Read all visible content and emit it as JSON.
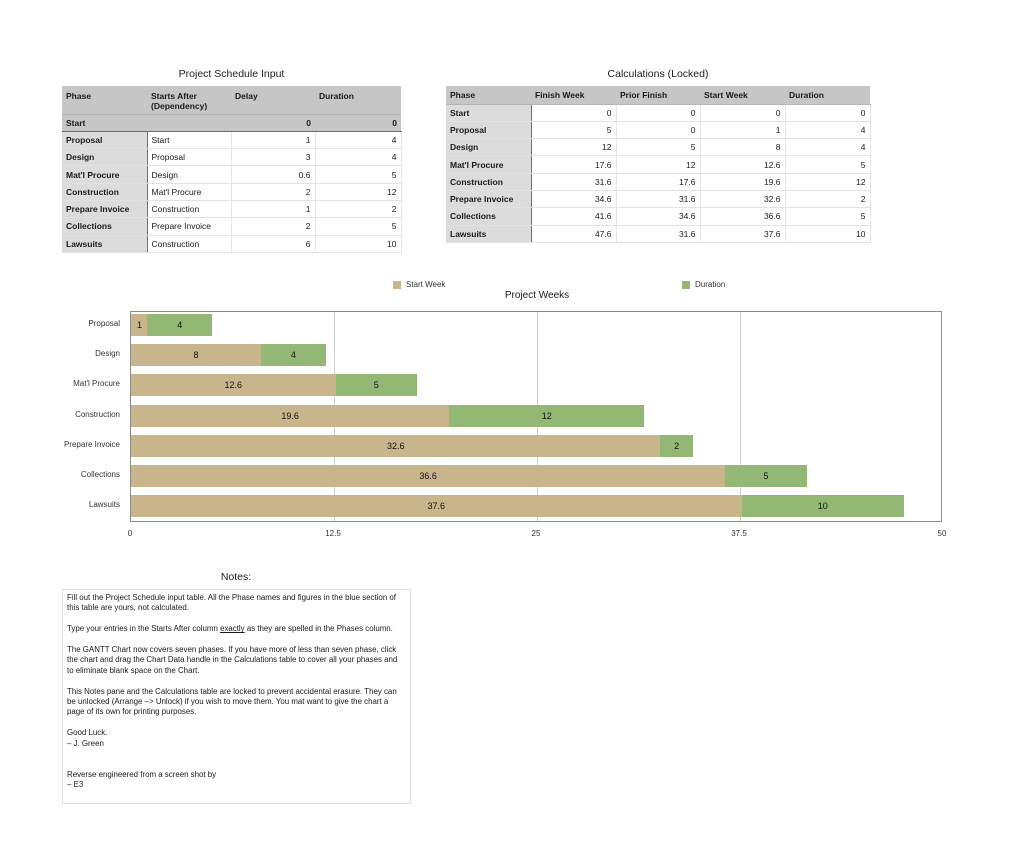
{
  "input_section": {
    "title": "Project Schedule Input",
    "headers": [
      "Phase",
      "Starts After (Dependency)",
      "Delay",
      "Duration"
    ],
    "header_line1": "Starts After",
    "header_line2": "(Dependency)",
    "start_row": {
      "phase": "Start",
      "starts_after": "",
      "delay": "0",
      "duration": "0"
    },
    "rows": [
      {
        "phase": "Proposal",
        "starts_after": "Start",
        "delay": "1",
        "duration": "4"
      },
      {
        "phase": "Design",
        "starts_after": "Proposal",
        "delay": "3",
        "duration": "4"
      },
      {
        "phase": "Mat'l Procure",
        "starts_after": "Design",
        "delay": "0.6",
        "duration": "5"
      },
      {
        "phase": "Construction",
        "starts_after": "Mat'l Procure",
        "delay": "2",
        "duration": "12"
      },
      {
        "phase": "Prepare Invoice",
        "starts_after": "Construction",
        "delay": "1",
        "duration": "2"
      },
      {
        "phase": "Collections",
        "starts_after": "Prepare Invoice",
        "delay": "2",
        "duration": "5"
      },
      {
        "phase": "Lawsuits",
        "starts_after": "Construction",
        "delay": "6",
        "duration": "10"
      }
    ]
  },
  "calc_section": {
    "title": "Calculations (Locked)",
    "headers": [
      "Phase",
      "Finish Week",
      "Prior Finish",
      "Start Week",
      "Duration"
    ],
    "rows": [
      {
        "phase": "Start",
        "finish_week": "0",
        "prior_finish": "0",
        "start_week": "0",
        "duration": "0"
      },
      {
        "phase": "Proposal",
        "finish_week": "5",
        "prior_finish": "0",
        "start_week": "1",
        "duration": "4"
      },
      {
        "phase": "Design",
        "finish_week": "12",
        "prior_finish": "5",
        "start_week": "8",
        "duration": "4"
      },
      {
        "phase": "Mat'l Procure",
        "finish_week": "17.6",
        "prior_finish": "12",
        "start_week": "12.6",
        "duration": "5"
      },
      {
        "phase": "Construction",
        "finish_week": "31.6",
        "prior_finish": "17.6",
        "start_week": "19.6",
        "duration": "12"
      },
      {
        "phase": "Prepare Invoice",
        "finish_week": "34.6",
        "prior_finish": "31.6",
        "start_week": "32.6",
        "duration": "2"
      },
      {
        "phase": "Collections",
        "finish_week": "41.6",
        "prior_finish": "34.6",
        "start_week": "36.6",
        "duration": "5"
      },
      {
        "phase": "Lawsuits",
        "finish_week": "47.6",
        "prior_finish": "31.6",
        "start_week": "37.6",
        "duration": "10"
      }
    ]
  },
  "chart": {
    "legend": [
      {
        "label": "Start Week",
        "color": "#c9b58b"
      },
      {
        "label": "Duration",
        "color": "#93b874"
      }
    ],
    "title": "Project Weeks",
    "ticks": [
      "0",
      "12.5",
      "25",
      "37.5",
      "50"
    ]
  },
  "chart_data": {
    "type": "bar",
    "orientation": "horizontal-stacked",
    "title": "Project Weeks",
    "categories": [
      "Proposal",
      "Design",
      "Mat'l Procure",
      "Construction",
      "Prepare Invoice",
      "Collections",
      "Lawsuits"
    ],
    "series": [
      {
        "name": "Start Week",
        "color": "#c9b58b",
        "values": [
          1,
          8,
          12.6,
          19.6,
          32.6,
          36.6,
          37.6
        ]
      },
      {
        "name": "Duration",
        "color": "#93b874",
        "values": [
          4,
          4,
          5,
          12,
          2,
          5,
          10
        ]
      }
    ],
    "xlabel": "",
    "ylabel": "",
    "xlim": [
      0,
      50
    ],
    "xticks": [
      0,
      12.5,
      25,
      37.5,
      50
    ],
    "grid": true,
    "legend_position": "top",
    "data_labels": true
  },
  "notes": {
    "title": "Notes:",
    "p1": "Fill out the Project Schedule input table. All the Phase names and figures in the blue section of this table are yours, not calculated.",
    "p2_before": "Type your entries in the Starts After column ",
    "p2_underlined": "exactly",
    "p2_after": " as they are spelled in the Phases column.",
    "p3": "The GANTT Chart now covers seven phases. If you have more of less than seven phase, click the chart and drag the Chart Data handle in the Calculations table to cover all your phases and to eliminate blank space on the Chart.",
    "p4": "This Notes pane and the Calculations table are locked to prevent accidental erasure. They can be unlocked (Arrange –> Unlock) if you wish to move them. You mat want to give the chart a page of its own for printing purposes.",
    "p5_line1": "Good Luck.",
    "p5_line2": "– J. Green",
    "p6_line1": "Reverse engineered from a screen shot by",
    "p6_line2": "– E3"
  }
}
